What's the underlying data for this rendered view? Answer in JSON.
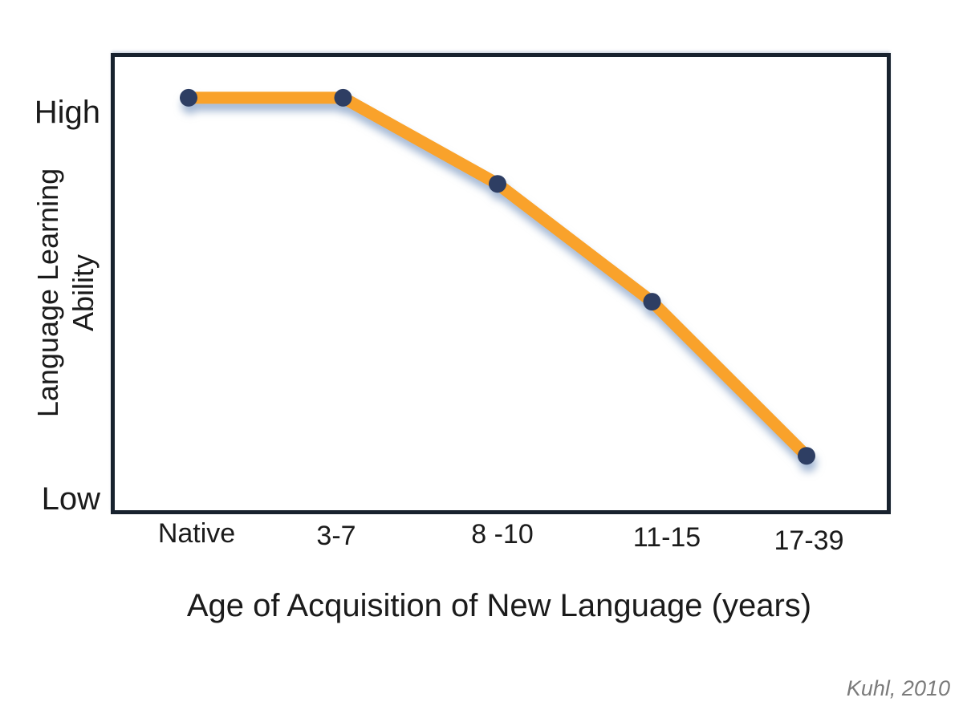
{
  "chart_data": {
    "type": "line",
    "title": "",
    "categories": [
      "Native",
      "3-7",
      "8 -10",
      "11-15",
      "17-39"
    ],
    "series": [
      {
        "name": "Language Learning Ability",
        "values": [
          0.91,
          0.91,
          0.72,
          0.46,
          0.12
        ]
      }
    ],
    "xlabel": "Age of Acquisition of New Language (years)",
    "ylabel_line1": "Language Learning",
    "ylabel_line2": "Ability",
    "y_tick_high": "High",
    "y_tick_low": "Low",
    "ylim": [
      0,
      1
    ],
    "grid": false,
    "legend": "none",
    "marker": "circle",
    "line_color": "#F9A22B",
    "marker_color": "#2E3E63",
    "shadow_color": "#6888B8",
    "frame_color": "#18222E",
    "annotation": "Kuhl, 2010"
  }
}
